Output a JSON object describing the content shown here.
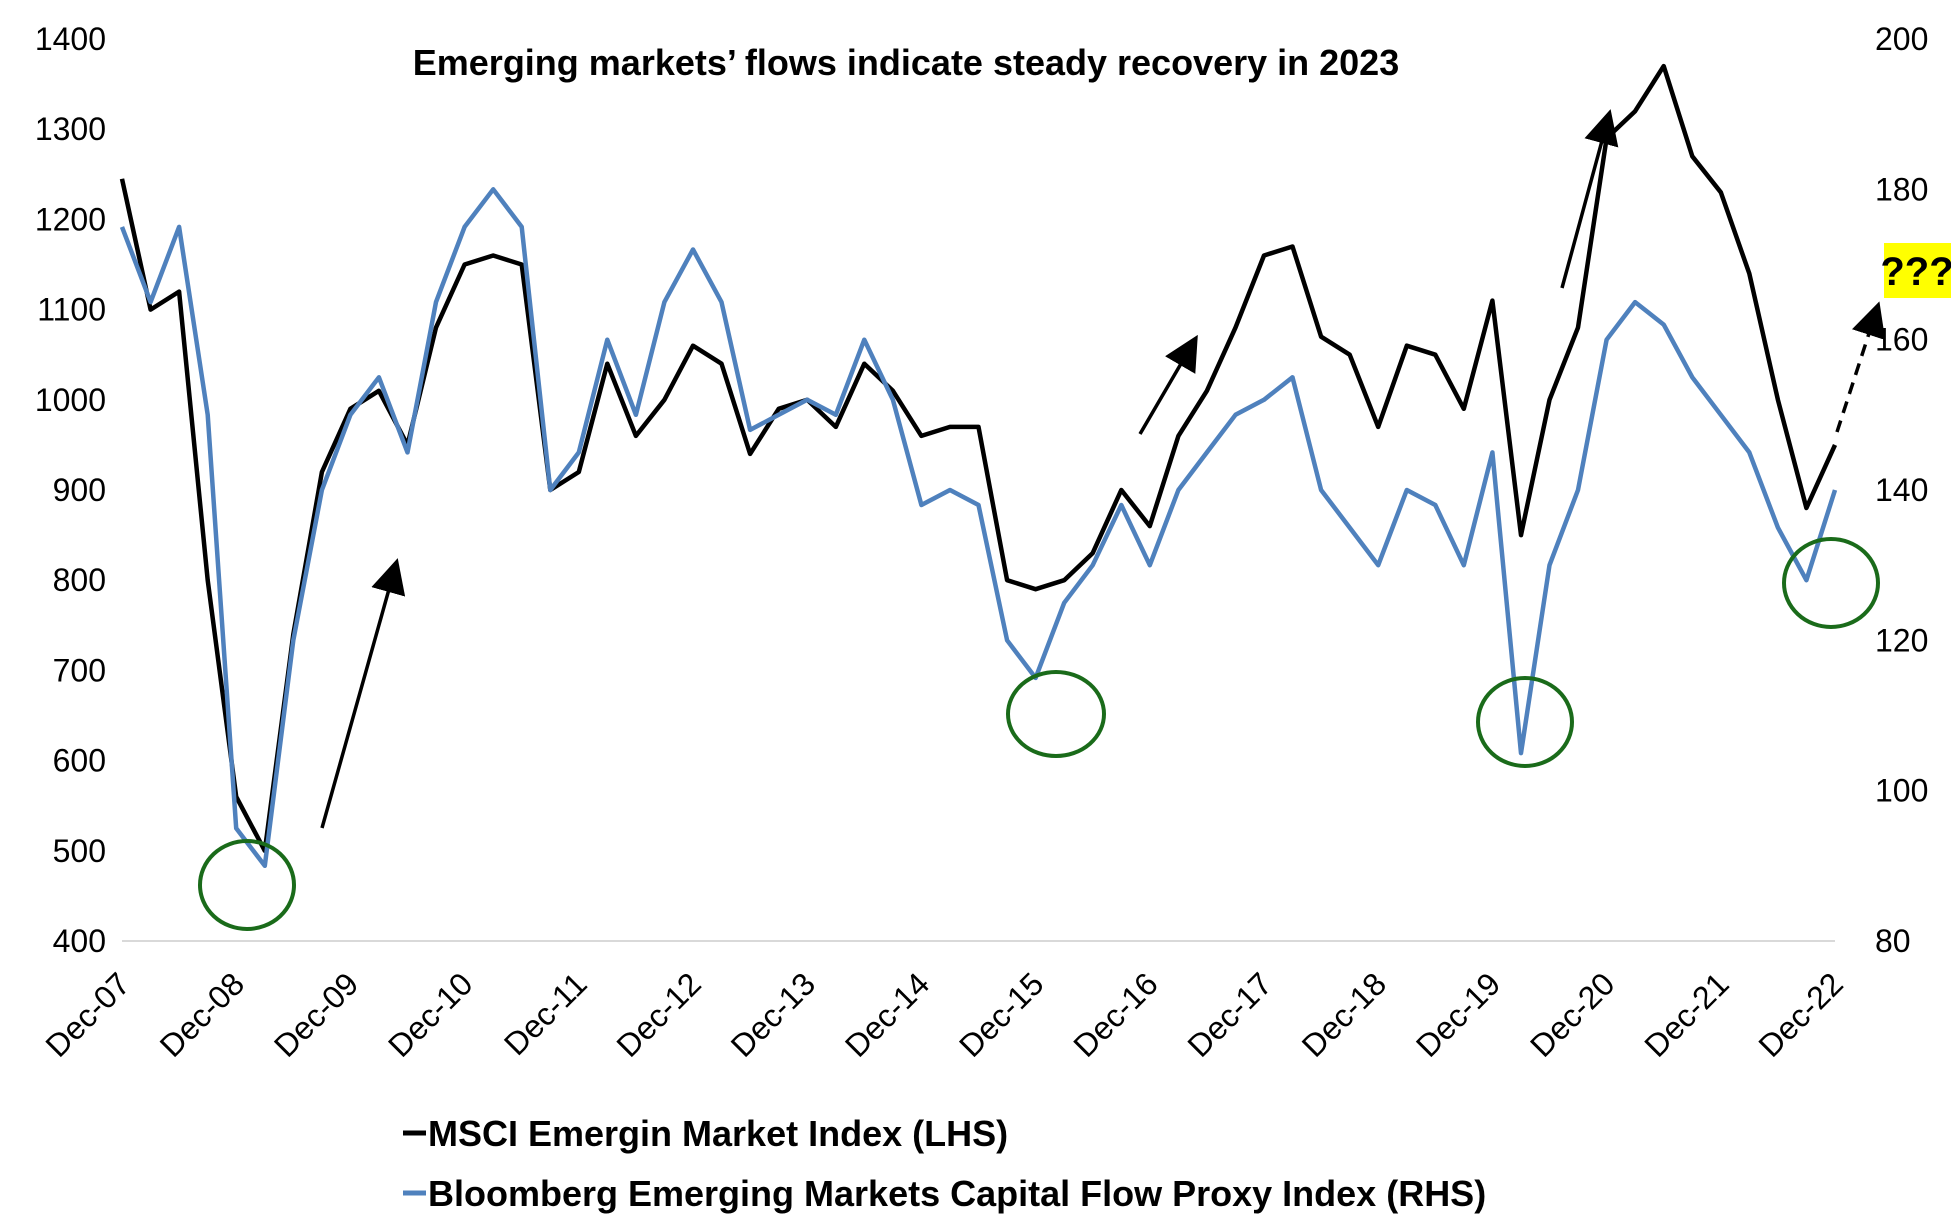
{
  "chart_data": {
    "type": "line",
    "title": "Emerging markets’ flows indicate steady recovery in 2023",
    "xlabel": "",
    "ylabel": "",
    "x_tick_labels": [
      "Dec-07",
      "Dec-08",
      "Dec-09",
      "Dec-10",
      "Dec-11",
      "Dec-12",
      "Dec-13",
      "Dec-14",
      "Dec-15",
      "Dec-16",
      "Dec-17",
      "Dec-18",
      "Dec-19",
      "Dec-20",
      "Dec-21",
      "Dec-22"
    ],
    "xlim": [
      "Dec-07",
      "Dec-22"
    ],
    "y_left": {
      "ylim": [
        400,
        1400
      ],
      "ticks": [
        "400",
        "500",
        "600",
        "700",
        "800",
        "900",
        "1000",
        "1100",
        "1200",
        "1300",
        "1400"
      ]
    },
    "y_right": {
      "ylim": [
        80,
        200
      ],
      "ticks": [
        "80",
        "100",
        "120",
        "140",
        "160",
        "180",
        "200"
      ]
    },
    "grid": false,
    "legend_placement": "bottom",
    "x": [
      "Dec-07",
      "Mar-08",
      "Jun-08",
      "Sep-08",
      "Dec-08",
      "Mar-09",
      "Jun-09",
      "Sep-09",
      "Dec-09",
      "Mar-10",
      "Jun-10",
      "Sep-10",
      "Dec-10",
      "Mar-11",
      "Jun-11",
      "Sep-11",
      "Dec-11",
      "Mar-12",
      "Jun-12",
      "Sep-12",
      "Dec-12",
      "Mar-13",
      "Jun-13",
      "Sep-13",
      "Dec-13",
      "Mar-14",
      "Jun-14",
      "Sep-14",
      "Dec-14",
      "Mar-15",
      "Jun-15",
      "Sep-15",
      "Dec-15",
      "Mar-16",
      "Jun-16",
      "Sep-16",
      "Dec-16",
      "Mar-17",
      "Jun-17",
      "Sep-17",
      "Dec-17",
      "Mar-18",
      "Jun-18",
      "Sep-18",
      "Dec-18",
      "Mar-19",
      "Jun-19",
      "Sep-19",
      "Dec-19",
      "Mar-20",
      "Jun-20",
      "Sep-20",
      "Dec-20",
      "Mar-21",
      "Jun-21",
      "Sep-21",
      "Dec-21",
      "Mar-22",
      "Jun-22",
      "Sep-22",
      "Dec-22"
    ],
    "series": [
      {
        "name": "MSCI Emergin Market Index (LHS)",
        "axis": "left",
        "color": "#000000",
        "values": [
          1245,
          1100,
          1120,
          800,
          560,
          500,
          740,
          920,
          990,
          1010,
          950,
          1080,
          1150,
          1160,
          1150,
          900,
          920,
          1040,
          960,
          1000,
          1060,
          1040,
          940,
          990,
          1000,
          970,
          1040,
          1010,
          960,
          970,
          970,
          800,
          790,
          800,
          830,
          900,
          860,
          960,
          1010,
          1080,
          1160,
          1170,
          1070,
          1050,
          970,
          1060,
          1050,
          990,
          1110,
          850,
          1000,
          1080,
          1290,
          1320,
          1370,
          1270,
          1230,
          1140,
          1000,
          880,
          950
        ]
      },
      {
        "name": "Bloomberg Emerging Markets Capital Flow Proxy Index (RHS)",
        "axis": "right",
        "color": "#4f81bd",
        "values": [
          175,
          165,
          175,
          150,
          95,
          90,
          120,
          140,
          150,
          155,
          145,
          165,
          175,
          180,
          175,
          140,
          145,
          160,
          150,
          165,
          172,
          165,
          148,
          150,
          152,
          150,
          160,
          152,
          138,
          140,
          138,
          120,
          115,
          125,
          130,
          138,
          130,
          140,
          145,
          150,
          152,
          155,
          140,
          135,
          130,
          140,
          138,
          130,
          145,
          105,
          130,
          140,
          160,
          165,
          162,
          155,
          150,
          145,
          135,
          128,
          140
        ]
      }
    ],
    "annotations": {
      "question_label": "???",
      "highlight_color": "#ffff00",
      "circle_color": "#1a6b1a",
      "circled_troughs": [
        "Dec-08",
        "Dec-15",
        "Mar-20",
        "Sep-22"
      ]
    }
  }
}
